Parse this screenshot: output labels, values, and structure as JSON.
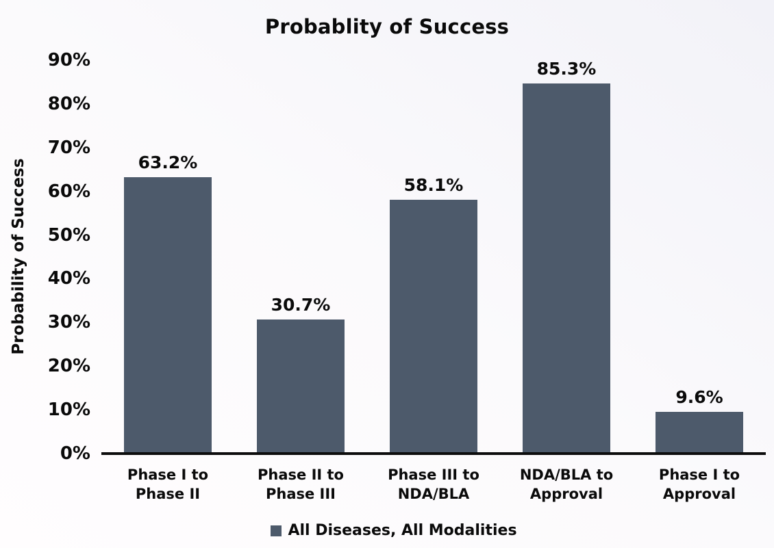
{
  "page": {
    "background_from": "#fffdfe",
    "background_to": "#f2f2f8"
  },
  "chart_data": {
    "type": "bar",
    "title": "Probablity of Success",
    "xlabel": "",
    "ylabel": "Probability of Success",
    "categories": [
      "Phase I to\nPhase II",
      "Phase II to\nPhase III",
      "Phase III to\nNDA/BLA",
      "NDA/BLA to\nApproval",
      "Phase I to\nApproval"
    ],
    "series": [
      {
        "name": "All Diseases, All Modalities",
        "values": [
          63.2,
          30.7,
          58.1,
          85.3,
          9.6
        ],
        "color": "#4d5a6b"
      }
    ],
    "value_labels": [
      "63.2%",
      "30.7%",
      "58.1%",
      "85.3%",
      "9.6%"
    ],
    "yticks": [
      "0%",
      "10%",
      "20%",
      "30%",
      "40%",
      "50%",
      "60%",
      "70%",
      "80%",
      "90%"
    ],
    "ylim": [
      0,
      90
    ],
    "grid": false,
    "legend_position": "bottom",
    "axis_line_color": "#0d0d0d"
  },
  "legend": {
    "label": "All Diseases, All Modalities",
    "marker_color": "#4d5a6b"
  }
}
